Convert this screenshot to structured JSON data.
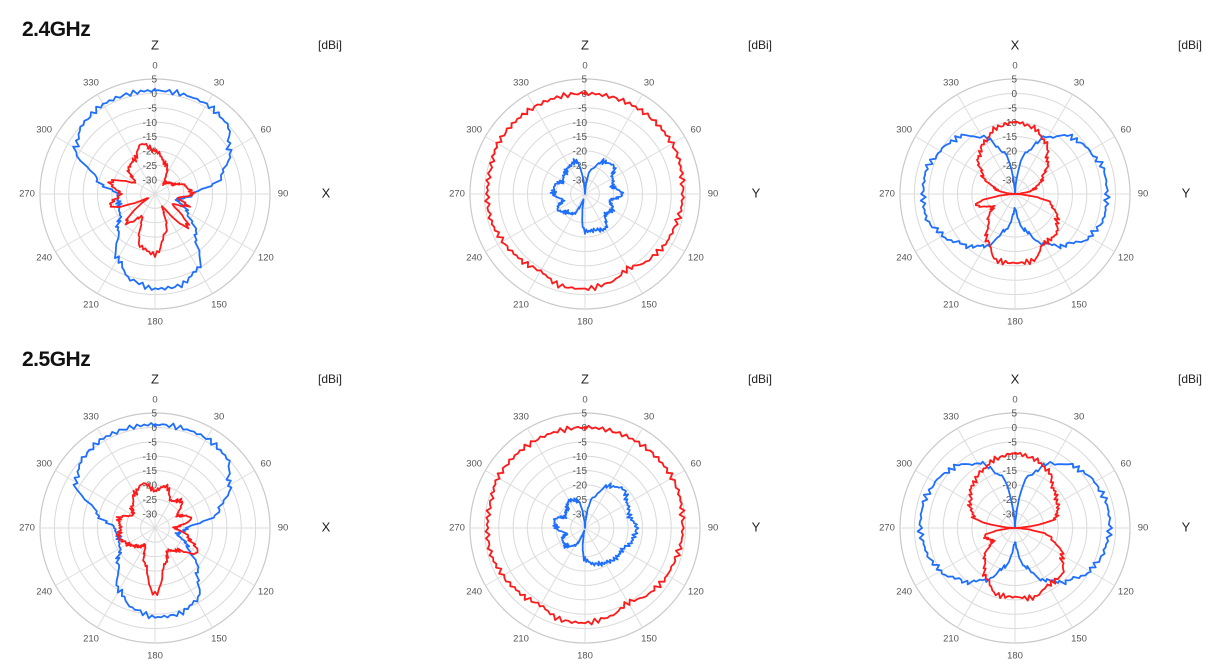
{
  "rows": [
    {
      "freq_label": "2.4GHz"
    },
    {
      "freq_label": "2.5GHz"
    }
  ],
  "colors": {
    "series_a": "#1f6fff",
    "series_b": "#ff1a1a",
    "grid": "#d9d9d9"
  },
  "chart_data": [
    {
      "type": "polar-line",
      "row": 0,
      "col": 0,
      "top_axis": "Z",
      "right_axis": "X",
      "unit": "[dBi]",
      "angle_ticks": [
        "0",
        "30",
        "60",
        "90",
        "120",
        "150",
        "180",
        "210",
        "240",
        "270",
        "300",
        "330"
      ],
      "radial_ticks": [
        "5",
        "0",
        "-5",
        "-10",
        "-15",
        "-20",
        "-25",
        "-30"
      ],
      "rlim": [
        -35,
        5
      ],
      "series": [
        {
          "color": "blue",
          "angles": [
            0,
            30,
            45,
            60,
            75,
            90,
            105,
            120,
            135,
            150,
            165,
            180,
            195,
            210,
            225,
            240,
            255,
            270,
            285,
            300,
            315,
            330,
            345
          ],
          "values": [
            1,
            1,
            0,
            -5,
            -11,
            -22,
            -27,
            -22,
            -15,
            -5,
            -2,
            -2,
            -4,
            -9,
            -17,
            -21,
            -22,
            -22,
            -14,
            -3,
            0,
            1,
            1
          ]
        },
        {
          "color": "red",
          "angles": [
            0,
            20,
            40,
            60,
            75,
            90,
            100,
            110,
            120,
            135,
            150,
            165,
            180,
            195,
            210,
            225,
            240,
            255,
            270,
            285,
            300,
            315,
            330,
            345
          ],
          "values": [
            -20,
            -24,
            -30,
            -28,
            -24,
            -22,
            -27,
            -23,
            -28,
            -19,
            -30,
            -21,
            -14,
            -16,
            -26,
            -21,
            -32,
            -19,
            -23,
            -19,
            -27,
            -22,
            -21,
            -17
          ]
        }
      ]
    },
    {
      "type": "polar-line",
      "row": 0,
      "col": 1,
      "top_axis": "Z",
      "right_axis": "Y",
      "unit": "[dBi]",
      "angle_ticks": [
        "0",
        "30",
        "60",
        "90",
        "120",
        "150",
        "180",
        "210",
        "240",
        "270",
        "300",
        "330"
      ],
      "radial_ticks": [
        "5",
        "0",
        "-5",
        "-10",
        "-15",
        "-20",
        "-25",
        "-30"
      ],
      "rlim": [
        -35,
        5
      ],
      "series": [
        {
          "color": "red",
          "angles": [
            0,
            30,
            60,
            90,
            120,
            135,
            150,
            165,
            180,
            195,
            210,
            225,
            240,
            255,
            270,
            285,
            300,
            315,
            330,
            345
          ],
          "values": [
            0,
            0,
            0,
            -1,
            -2,
            -3,
            -5,
            -3,
            -2,
            -2,
            -4,
            -3,
            -2,
            -1,
            -1,
            -1,
            0,
            0,
            0,
            0
          ]
        },
        {
          "color": "blue",
          "angles": [
            0,
            15,
            30,
            45,
            60,
            75,
            90,
            105,
            120,
            135,
            150,
            165,
            180,
            195,
            210,
            225,
            240,
            255,
            270,
            285,
            300,
            315,
            330,
            345
          ],
          "values": [
            -35,
            -26,
            -22,
            -21,
            -24,
            -25,
            -22,
            -26,
            -24,
            -25,
            -21,
            -22,
            -22,
            -33,
            -27,
            -26,
            -24,
            -27,
            -24,
            -24,
            -26,
            -25,
            -24,
            -23
          ]
        }
      ]
    },
    {
      "type": "polar-line",
      "row": 0,
      "col": 2,
      "top_axis": "X",
      "right_axis": "Y",
      "unit": "[dBi]",
      "angle_ticks": [
        "0",
        "30",
        "60",
        "90",
        "120",
        "150",
        "180",
        "210",
        "240",
        "270",
        "300",
        "330"
      ],
      "radial_ticks": [
        "5",
        "0",
        "-5",
        "-10",
        "-15",
        "-20",
        "-25",
        "-30"
      ],
      "rlim": [
        -35,
        5
      ],
      "series": [
        {
          "color": "blue",
          "angles": [
            0,
            15,
            30,
            45,
            60,
            75,
            90,
            105,
            120,
            135,
            150,
            165,
            180,
            195,
            210,
            225,
            240,
            255,
            270,
            285,
            300,
            315,
            330,
            345
          ],
          "values": [
            -35,
            -20,
            -12,
            -7,
            -5,
            -3,
            -3,
            -3,
            -5,
            -10,
            -15,
            -22,
            -30,
            -22,
            -14,
            -10,
            -6,
            -3,
            -3,
            -3,
            -5,
            -7,
            -12,
            -20
          ]
        },
        {
          "color": "red",
          "angles": [
            0,
            15,
            30,
            45,
            60,
            75,
            90,
            105,
            120,
            135,
            150,
            165,
            180,
            195,
            210,
            225,
            240,
            255,
            270,
            285,
            300,
            315,
            330,
            345
          ],
          "values": [
            -10,
            -11,
            -14,
            -19,
            -24,
            -28,
            -35,
            -22,
            -18,
            -15,
            -15,
            -11,
            -11,
            -11,
            -16,
            -22,
            -26,
            -21,
            -35,
            -28,
            -22,
            -17,
            -14,
            -11
          ]
        }
      ]
    },
    {
      "type": "polar-line",
      "row": 1,
      "col": 0,
      "top_axis": "Z",
      "right_axis": "X",
      "unit": "[dBi]",
      "angle_ticks": [
        "0",
        "30",
        "60",
        "90",
        "120",
        "150",
        "180",
        "210",
        "240",
        "270",
        "300",
        "330"
      ],
      "radial_ticks": [
        "5",
        "0",
        "-5",
        "-10",
        "-15",
        "-20",
        "-25",
        "-30"
      ],
      "rlim": [
        -35,
        5
      ],
      "series": [
        {
          "color": "blue",
          "angles": [
            0,
            30,
            45,
            60,
            75,
            90,
            105,
            120,
            135,
            150,
            165,
            180,
            195,
            210,
            225,
            240,
            255,
            270,
            285,
            300,
            315,
            330,
            345
          ],
          "values": [
            1,
            1,
            0,
            -5,
            -12,
            -24,
            -27,
            -22,
            -14,
            -6,
            -4,
            -4,
            -6,
            -10,
            -17,
            -21,
            -22,
            -21,
            -14,
            -3,
            0,
            1,
            1
          ]
        },
        {
          "color": "red",
          "angles": [
            0,
            15,
            30,
            45,
            60,
            75,
            90,
            105,
            120,
            135,
            150,
            165,
            180,
            195,
            210,
            225,
            240,
            255,
            270,
            285,
            300,
            315,
            330,
            345
          ],
          "values": [
            -22,
            -20,
            -24,
            -22,
            -26,
            -22,
            -28,
            -23,
            -18,
            -24,
            -26,
            -22,
            -12,
            -22,
            -28,
            -26,
            -24,
            -22,
            -23,
            -22,
            -26,
            -24,
            -21,
            -19
          ]
        }
      ]
    },
    {
      "type": "polar-line",
      "row": 1,
      "col": 1,
      "top_axis": "Z",
      "right_axis": "Y",
      "unit": "[dBi]",
      "angle_ticks": [
        "0",
        "30",
        "60",
        "90",
        "120",
        "150",
        "180",
        "210",
        "240",
        "270",
        "300",
        "330"
      ],
      "radial_ticks": [
        "5",
        "0",
        "-5",
        "-10",
        "-15",
        "-20",
        "-25",
        "-30"
      ],
      "rlim": [
        -35,
        5
      ],
      "series": [
        {
          "color": "red",
          "angles": [
            0,
            30,
            60,
            90,
            120,
            135,
            150,
            165,
            180,
            195,
            210,
            225,
            240,
            255,
            270,
            285,
            300,
            315,
            330,
            345
          ],
          "values": [
            0,
            0,
            0,
            -1,
            -2,
            -3,
            -5,
            -3,
            -2,
            -2,
            -4,
            -3,
            -2,
            -1,
            -1,
            -1,
            0,
            0,
            0,
            0
          ]
        },
        {
          "color": "blue",
          "angles": [
            0,
            15,
            30,
            45,
            60,
            75,
            90,
            105,
            120,
            135,
            150,
            165,
            180,
            195,
            210,
            225,
            240,
            255,
            270,
            285,
            300,
            315,
            330,
            345
          ],
          "values": [
            -35,
            -24,
            -18,
            -16,
            -18,
            -19,
            -17,
            -18,
            -20,
            -20,
            -21,
            -22,
            -24,
            -34,
            -28,
            -26,
            -26,
            -28,
            -25,
            -24,
            -27,
            -26,
            -24,
            -25
          ]
        }
      ]
    },
    {
      "type": "polar-line",
      "row": 1,
      "col": 2,
      "top_axis": "X",
      "right_axis": "Y",
      "unit": "[dBi]",
      "angle_ticks": [
        "0",
        "30",
        "60",
        "90",
        "120",
        "150",
        "180",
        "210",
        "240",
        "270",
        "300",
        "330"
      ],
      "radial_ticks": [
        "5",
        "0",
        "-5",
        "-10",
        "-15",
        "-20",
        "-25",
        "-30"
      ],
      "rlim": [
        -35,
        5
      ],
      "series": [
        {
          "color": "blue",
          "angles": [
            0,
            15,
            30,
            45,
            60,
            75,
            90,
            105,
            120,
            135,
            150,
            165,
            180,
            195,
            210,
            225,
            240,
            255,
            270,
            285,
            300,
            315,
            330,
            345
          ],
          "values": [
            -35,
            -16,
            -9,
            -5,
            -3,
            -2,
            -2,
            -3,
            -5,
            -9,
            -14,
            -21,
            -30,
            -21,
            -14,
            -9,
            -5,
            -3,
            -2,
            -2,
            -3,
            -5,
            -9,
            -16
          ]
        },
        {
          "color": "red",
          "angles": [
            0,
            15,
            30,
            45,
            60,
            75,
            90,
            105,
            120,
            135,
            150,
            165,
            180,
            195,
            210,
            225,
            240,
            255,
            270,
            285,
            300,
            315,
            330,
            345
          ],
          "values": [
            -9,
            -10,
            -12,
            -16,
            -18,
            -20,
            -35,
            -22,
            -16,
            -12,
            -12,
            -10,
            -11,
            -11,
            -15,
            -20,
            -26,
            -24,
            -35,
            -20,
            -17,
            -14,
            -12,
            -10
          ]
        }
      ]
    }
  ]
}
